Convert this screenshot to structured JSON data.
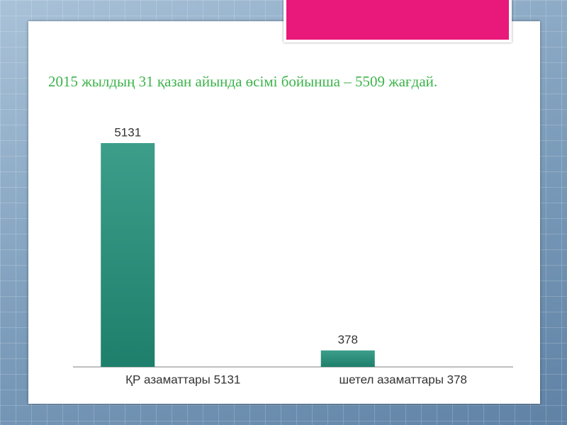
{
  "chart_data": {
    "type": "bar",
    "title": "2015 жылдың 31 қазан айында өсімі бойынша – 5509 жағдай.",
    "categories": [
      "ҚР азаматтары 5131",
      "шетел азаматтары 378"
    ],
    "values": [
      5131,
      378
    ],
    "color": "#22917a"
  }
}
